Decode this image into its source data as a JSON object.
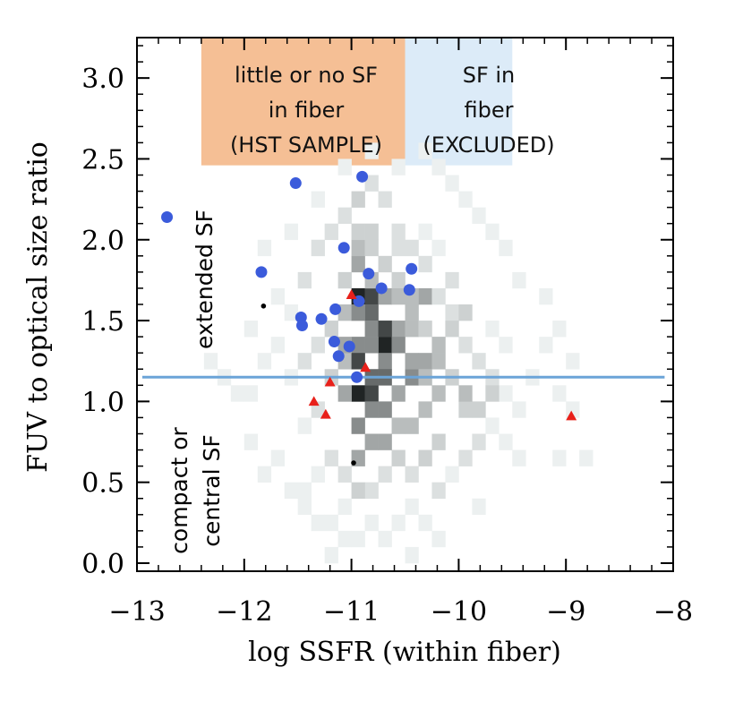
{
  "chart_data": {
    "type": "scatter",
    "xlabel": "log SSFR (within fiber)",
    "ylabel": "FUV to optical size ratio",
    "xlim": [
      -13,
      -8
    ],
    "ylim": [
      -0.05,
      3.25
    ],
    "x_ticks": [
      -13,
      -12,
      -11,
      -10,
      -9,
      -8
    ],
    "x_tick_labels": [
      "−13",
      "−12",
      "−11",
      "−10",
      "−9",
      "−8"
    ],
    "y_ticks": [
      0.0,
      0.5,
      1.0,
      1.5,
      2.0,
      2.5,
      3.0
    ],
    "y_tick_labels": [
      "0.0",
      "0.5",
      "1.0",
      "1.5",
      "2.0",
      "2.5",
      "3.0"
    ],
    "grid": false,
    "regions": [
      {
        "lines": [
          "little or no SF",
          "in fiber",
          "(HST SAMPLE)"
        ],
        "x_range": [
          -12.4,
          -10.5
        ],
        "y_range": [
          2.46,
          3.25
        ],
        "color": "#f5bf95"
      },
      {
        "lines": [
          "SF in",
          "fiber",
          "(EXCLUDED)"
        ],
        "x_range": [
          -10.5,
          -9.5
        ],
        "y_range": [
          2.46,
          3.25
        ],
        "color": "#dcebf8"
      }
    ],
    "side_labels": {
      "upper": "extended SF",
      "lower_lines": [
        "compact or",
        "central SF"
      ]
    },
    "threshold_line": {
      "y": 1.15,
      "color": "#6ba4d8"
    },
    "colors": {
      "blue": "#3b5bdb",
      "red": "#e8201a",
      "black": "#000000"
    },
    "background_histogram": {
      "bin_width_x": 0.125,
      "bin_height_y": 0.1,
      "shades": [
        0.06,
        0.12,
        0.18,
        0.26,
        0.35,
        0.45,
        0.58,
        0.72,
        0.86,
        0.95
      ],
      "bins": [
        [
          -11.0,
          1.6,
          9
        ],
        [
          -10.875,
          1.6,
          8
        ],
        [
          -10.875,
          1.5,
          7
        ],
        [
          -10.75,
          1.3,
          9
        ],
        [
          -10.75,
          1.2,
          6
        ],
        [
          -11.0,
          1.0,
          9
        ],
        [
          -10.875,
          1.0,
          8
        ],
        [
          -10.75,
          1.1,
          7
        ],
        [
          -11.0,
          1.3,
          6
        ],
        [
          -10.875,
          1.4,
          6
        ],
        [
          -11.0,
          0.8,
          6
        ],
        [
          -10.875,
          0.7,
          5
        ],
        [
          -10.75,
          0.9,
          6
        ],
        [
          -10.625,
          1.0,
          5
        ],
        [
          -10.5,
          1.1,
          6
        ],
        [
          -10.375,
          1.2,
          5
        ],
        [
          -10.625,
          1.4,
          5
        ],
        [
          -10.5,
          1.5,
          4
        ],
        [
          -10.375,
          1.6,
          5
        ],
        [
          -10.5,
          0.8,
          4
        ],
        [
          -10.375,
          0.9,
          4
        ],
        [
          -10.25,
          1.0,
          4
        ],
        [
          -11.125,
          1.2,
          4
        ],
        [
          -11.125,
          1.0,
          5
        ],
        [
          -11.0,
          0.6,
          5
        ],
        [
          -11.0,
          1.8,
          5
        ],
        [
          -10.875,
          1.7,
          4
        ],
        [
          -10.75,
          1.8,
          3
        ],
        [
          -10.625,
          1.7,
          3
        ],
        [
          -11.125,
          1.7,
          3
        ],
        [
          -11.25,
          1.4,
          3
        ],
        [
          -11.25,
          1.1,
          3
        ],
        [
          -11.375,
          1.3,
          2
        ],
        [
          -11.375,
          0.9,
          2
        ],
        [
          -11.5,
          1.2,
          2
        ],
        [
          -11.5,
          0.8,
          1
        ],
        [
          -11.625,
          1.1,
          1
        ],
        [
          -11.75,
          1.3,
          1
        ],
        [
          -11.875,
          1.2,
          1
        ],
        [
          -12.0,
          1.0,
          1
        ],
        [
          -12.125,
          1.0,
          1
        ],
        [
          -11.625,
          1.5,
          1
        ],
        [
          -11.75,
          1.6,
          1
        ],
        [
          -11.5,
          1.7,
          2
        ],
        [
          -11.375,
          1.9,
          2
        ],
        [
          -11.25,
          2.0,
          2
        ],
        [
          -11.125,
          2.1,
          2
        ],
        [
          -11.0,
          2.2,
          3
        ],
        [
          -10.875,
          2.3,
          2
        ],
        [
          -10.75,
          2.2,
          2
        ],
        [
          -10.625,
          2.0,
          2
        ],
        [
          -10.5,
          1.9,
          2
        ],
        [
          -10.375,
          1.8,
          2
        ],
        [
          -10.25,
          1.6,
          2
        ],
        [
          -10.125,
          1.5,
          2
        ],
        [
          -10.0,
          1.3,
          2
        ],
        [
          -9.875,
          1.2,
          2
        ],
        [
          -9.75,
          1.1,
          2
        ],
        [
          -9.625,
          1.0,
          1
        ],
        [
          -9.5,
          0.9,
          1
        ],
        [
          -9.375,
          1.1,
          1
        ],
        [
          -9.25,
          1.3,
          1
        ],
        [
          -9.125,
          1.0,
          1
        ],
        [
          -9.0,
          1.2,
          1
        ],
        [
          -10.0,
          0.9,
          3
        ],
        [
          -10.125,
          1.1,
          3
        ],
        [
          -10.25,
          0.7,
          3
        ],
        [
          -10.375,
          0.6,
          3
        ],
        [
          -10.5,
          0.5,
          2
        ],
        [
          -10.625,
          0.6,
          3
        ],
        [
          -10.75,
          0.5,
          2
        ],
        [
          -10.875,
          0.4,
          2
        ],
        [
          -11.0,
          0.4,
          3
        ],
        [
          -11.125,
          0.5,
          2
        ],
        [
          -11.25,
          0.6,
          2
        ],
        [
          -11.375,
          0.5,
          1
        ],
        [
          -11.5,
          0.4,
          1
        ],
        [
          -11.125,
          0.3,
          1
        ],
        [
          -10.875,
          0.2,
          1
        ],
        [
          -10.75,
          0.1,
          1
        ],
        [
          -10.625,
          0.2,
          1
        ],
        [
          -10.5,
          0.3,
          1
        ],
        [
          -10.375,
          0.2,
          1
        ],
        [
          -10.25,
          0.4,
          2
        ],
        [
          -10.125,
          0.5,
          1
        ],
        [
          -10.0,
          0.6,
          2
        ],
        [
          -9.875,
          0.7,
          2
        ],
        [
          -9.75,
          0.8,
          1
        ],
        [
          -9.625,
          0.7,
          1
        ],
        [
          -9.5,
          0.6,
          1
        ],
        [
          -11.0,
          0.1,
          1
        ],
        [
          -11.25,
          0.2,
          1
        ],
        [
          -10.5,
          0.0,
          1
        ],
        [
          -10.25,
          0.1,
          1
        ],
        [
          -9.875,
          0.3,
          1
        ],
        [
          -9.125,
          0.6,
          1
        ],
        [
          -8.875,
          0.6,
          1
        ],
        [
          -9.0,
          0.9,
          1
        ],
        [
          -9.125,
          1.4,
          1
        ],
        [
          -9.25,
          1.6,
          1
        ],
        [
          -9.5,
          1.7,
          1
        ],
        [
          -9.625,
          1.9,
          1
        ],
        [
          -9.75,
          2.0,
          1
        ],
        [
          -9.875,
          2.1,
          1
        ],
        [
          -10.0,
          2.2,
          1
        ],
        [
          -10.125,
          2.3,
          1
        ],
        [
          -10.25,
          2.4,
          1
        ],
        [
          -10.375,
          2.5,
          1
        ],
        [
          -10.625,
          2.4,
          1
        ],
        [
          -10.875,
          2.5,
          1
        ],
        [
          -11.125,
          2.4,
          1
        ],
        [
          -11.375,
          2.2,
          1
        ],
        [
          -11.625,
          2.0,
          1
        ],
        [
          -11.875,
          1.9,
          1
        ],
        [
          -12.0,
          1.4,
          1
        ],
        [
          -12.25,
          1.1,
          1
        ],
        [
          -12.375,
          1.2,
          1
        ],
        [
          -12.0,
          0.7,
          1
        ],
        [
          -11.875,
          0.5,
          1
        ],
        [
          -11.75,
          0.6,
          1
        ],
        [
          -11.625,
          0.4,
          1
        ],
        [
          -11.5,
          0.3,
          1
        ],
        [
          -11.375,
          0.2,
          1
        ],
        [
          -11.25,
          0.0,
          1
        ],
        [
          -11.125,
          0.1,
          1
        ],
        [
          -10.75,
          1.4,
          8
        ],
        [
          -10.625,
          1.3,
          6
        ],
        [
          -10.5,
          1.2,
          5
        ],
        [
          -10.375,
          1.1,
          4
        ],
        [
          -10.25,
          1.3,
          4
        ],
        [
          -10.125,
          1.4,
          3
        ],
        [
          -10.0,
          1.5,
          3
        ],
        [
          -10.0,
          1.0,
          4
        ],
        [
          -9.875,
          0.9,
          3
        ],
        [
          -9.75,
          1.0,
          3
        ],
        [
          -10.625,
          0.8,
          4
        ],
        [
          -10.75,
          0.7,
          5
        ],
        [
          -10.875,
          0.9,
          6
        ],
        [
          -10.875,
          1.1,
          7
        ],
        [
          -11.0,
          1.2,
          8
        ],
        [
          -11.125,
          1.3,
          5
        ],
        [
          -11.125,
          1.5,
          4
        ],
        [
          -11.0,
          1.5,
          6
        ],
        [
          -10.875,
          1.3,
          6
        ],
        [
          -10.75,
          1.6,
          5
        ],
        [
          -10.625,
          1.6,
          4
        ],
        [
          -10.5,
          1.6,
          4
        ],
        [
          -10.5,
          1.4,
          4
        ],
        [
          -10.375,
          1.4,
          3
        ],
        [
          -10.25,
          1.2,
          4
        ],
        [
          -11.0,
          1.9,
          4
        ],
        [
          -10.875,
          1.9,
          3
        ],
        [
          -10.875,
          2.0,
          3
        ],
        [
          -11.0,
          2.0,
          3
        ],
        [
          -10.625,
          1.9,
          2
        ],
        [
          -10.375,
          2.0,
          1
        ],
        [
          -10.25,
          1.9,
          1
        ],
        [
          -10.125,
          1.7,
          2
        ],
        [
          -9.75,
          1.4,
          1
        ],
        [
          -9.625,
          1.3,
          1
        ]
      ]
    },
    "series": [
      {
        "marker": "circle",
        "color": "#3b5bdb",
        "points": [
          [
            -12.72,
            2.14
          ],
          [
            -11.52,
            2.35
          ],
          [
            -10.9,
            2.39
          ],
          [
            -11.84,
            1.8
          ],
          [
            -11.07,
            1.95
          ],
          [
            -11.47,
            1.52
          ],
          [
            -11.46,
            1.47
          ],
          [
            -11.28,
            1.51
          ],
          [
            -11.15,
            1.57
          ],
          [
            -10.84,
            1.79
          ],
          [
            -10.72,
            1.7
          ],
          [
            -10.44,
            1.82
          ],
          [
            -10.46,
            1.69
          ],
          [
            -10.93,
            1.62
          ],
          [
            -11.16,
            1.37
          ],
          [
            -11.02,
            1.34
          ],
          [
            -11.12,
            1.28
          ],
          [
            -10.95,
            1.15
          ]
        ]
      },
      {
        "marker": "triangle",
        "color": "#e8201a",
        "points": [
          [
            -11.0,
            1.66
          ],
          [
            -10.87,
            1.21
          ],
          [
            -11.2,
            1.12
          ],
          [
            -11.35,
            1.0
          ],
          [
            -11.24,
            0.92
          ],
          [
            -8.95,
            0.91
          ]
        ]
      },
      {
        "marker": "dot",
        "color": "#000000",
        "points": [
          [
            -11.82,
            1.59
          ],
          [
            -10.98,
            0.62
          ]
        ]
      }
    ]
  }
}
